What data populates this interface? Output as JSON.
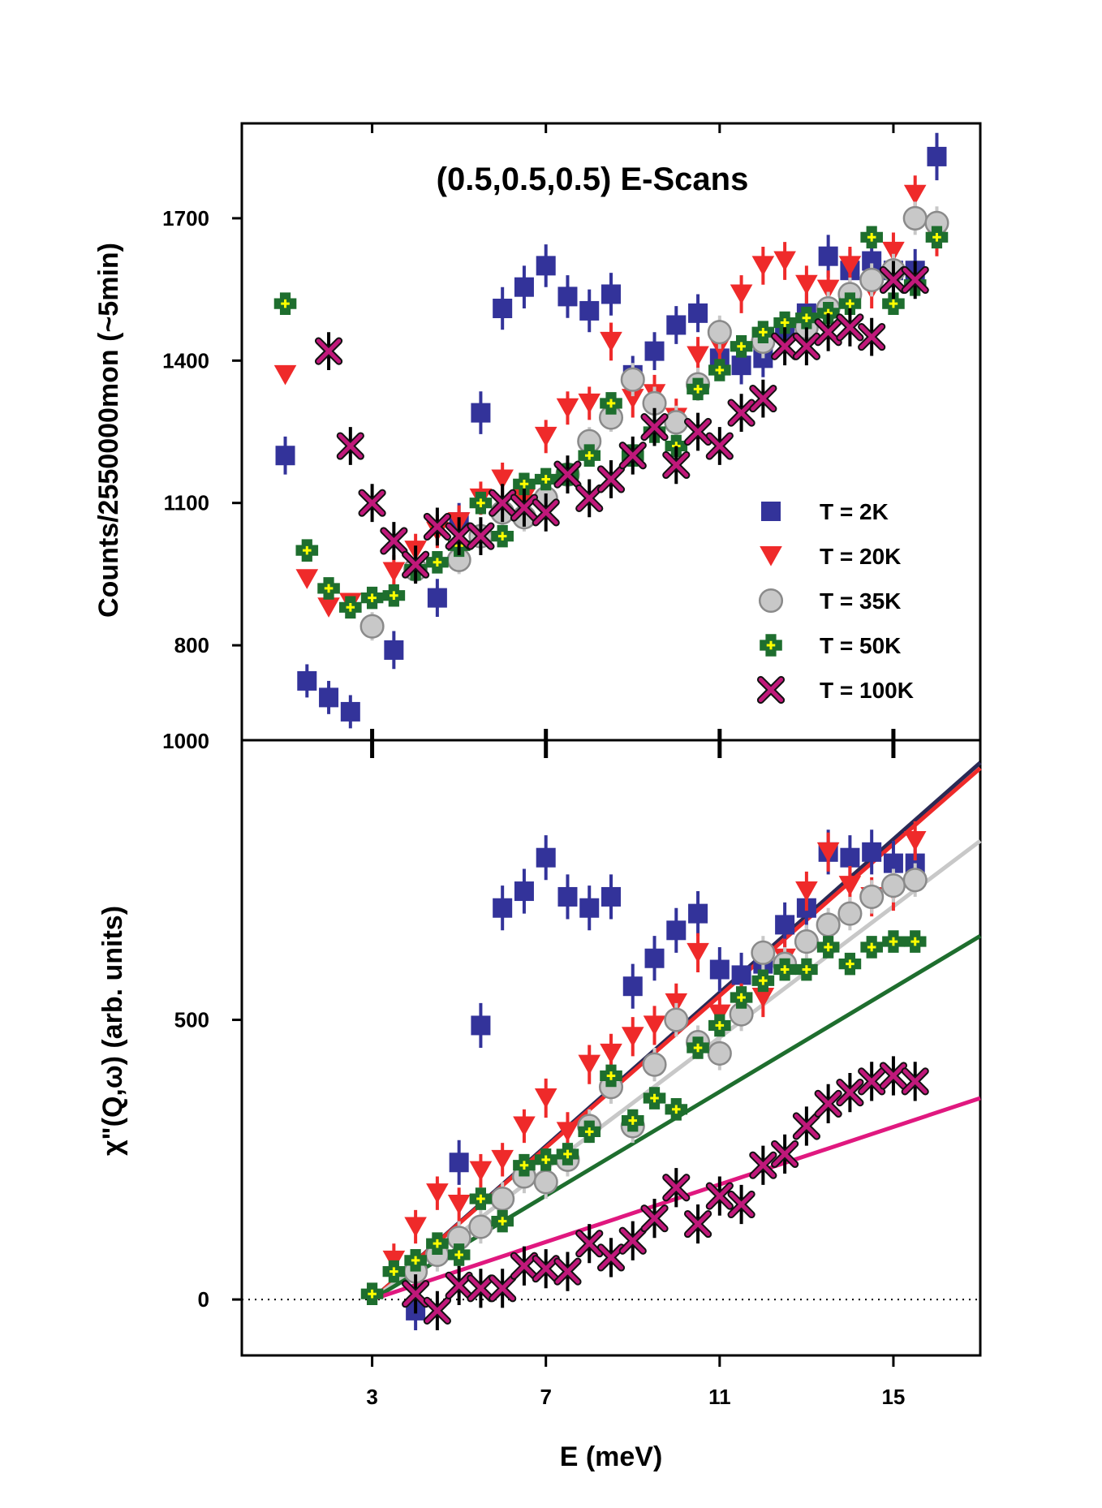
{
  "chart_data": [
    {
      "type": "scatter",
      "panel": "top",
      "title": "(0.5,0.5,0.5) E-Scans",
      "xlabel": "",
      "ylabel": "Counts/2550000mon (~5min)",
      "xlim": [
        0,
        17
      ],
      "ylim": [
        600,
        1900
      ],
      "yticks": [
        {
          "value": 800,
          "label": "800"
        },
        {
          "value": 1100,
          "label": "1100"
        },
        {
          "value": 1400,
          "label": "1400"
        },
        {
          "value": 1700,
          "label": "1700"
        }
      ],
      "bottom_tick_label": "1000",
      "legend_position": "bottom-right",
      "series": [
        {
          "name": "T = 2K",
          "color": "#33339a",
          "marker": "square",
          "x": [
            1.0,
            1.5,
            2.0,
            2.5,
            3.5,
            4.5,
            5.0,
            5.5,
            6.0,
            6.5,
            7.0,
            7.5,
            8.0,
            8.5,
            9.0,
            9.5,
            10.0,
            10.5,
            11.0,
            11.5,
            12.0,
            12.5,
            13.0,
            13.5,
            14.0,
            14.5,
            15.0,
            15.5,
            16.0
          ],
          "y": [
            1200,
            725,
            690,
            660,
            790,
            900,
            1060,
            1290,
            1510,
            1555,
            1600,
            1535,
            1505,
            1540,
            1370,
            1420,
            1475,
            1500,
            1405,
            1390,
            1405,
            1460,
            1500,
            1620,
            1590,
            1610,
            1590,
            1590,
            1830
          ],
          "err": [
            40,
            35,
            35,
            35,
            40,
            40,
            40,
            45,
            45,
            45,
            45,
            45,
            45,
            45,
            40,
            40,
            40,
            40,
            40,
            40,
            40,
            40,
            45,
            45,
            45,
            45,
            45,
            45,
            50
          ]
        },
        {
          "name": "T = 20K",
          "color": "#ef2a2a",
          "marker": "triangle-down",
          "x": [
            1.0,
            1.5,
            2.0,
            2.5,
            3.5,
            4.0,
            4.5,
            5.0,
            5.5,
            6.0,
            6.5,
            7.0,
            7.5,
            8.0,
            8.5,
            9.0,
            9.5,
            10.0,
            10.5,
            11.0,
            11.5,
            12.0,
            12.5,
            13.0,
            13.5,
            14.0,
            14.5,
            15.0,
            15.5,
            16.0
          ],
          "y": [
            1370,
            940,
            880,
            890,
            955,
            1000,
            1040,
            1060,
            1110,
            1150,
            1110,
            1240,
            1300,
            1310,
            1440,
            1320,
            1330,
            1280,
            1410,
            1430,
            1540,
            1600,
            1610,
            1560,
            1550,
            1600,
            1550,
            1630,
            1750,
            1660
          ],
          "err": [
            0,
            0,
            0,
            0,
            35,
            35,
            35,
            35,
            35,
            35,
            35,
            35,
            35,
            35,
            40,
            40,
            40,
            40,
            40,
            40,
            40,
            40,
            40,
            40,
            40,
            40,
            40,
            40,
            40,
            40
          ]
        },
        {
          "name": "T = 35K",
          "color": "#c8c8c8",
          "marker": "circle",
          "x": [
            3.0,
            4.0,
            5.0,
            5.5,
            6.0,
            6.5,
            7.0,
            7.5,
            8.0,
            8.5,
            9.0,
            9.5,
            10.0,
            10.5,
            11.0,
            12.0,
            13.0,
            13.5,
            14.0,
            14.5,
            15.0,
            15.5,
            16.0
          ],
          "y": [
            840,
            960,
            980,
            1030,
            1080,
            1070,
            1110,
            1160,
            1230,
            1280,
            1360,
            1310,
            1270,
            1350,
            1460,
            1440,
            1470,
            1510,
            1540,
            1570,
            1590,
            1700,
            1690
          ],
          "err": [
            30,
            30,
            30,
            30,
            30,
            30,
            30,
            30,
            30,
            30,
            35,
            35,
            35,
            35,
            35,
            35,
            35,
            35,
            35,
            35,
            35,
            35,
            35
          ]
        },
        {
          "name": "T = 50K",
          "color": "#1e6e2e",
          "marker": "cross",
          "x": [
            1.0,
            1.5,
            2.0,
            2.5,
            3.0,
            3.5,
            4.0,
            4.5,
            5.0,
            5.5,
            6.0,
            6.5,
            7.0,
            7.5,
            8.0,
            8.5,
            9.0,
            9.5,
            10.0,
            10.5,
            11.0,
            11.5,
            12.0,
            12.5,
            13.0,
            13.5,
            14.0,
            14.5,
            15.0,
            15.5,
            16.0
          ],
          "y": [
            1520,
            1000,
            920,
            880,
            900,
            905,
            960,
            975,
            1010,
            1100,
            1030,
            1140,
            1150,
            1160,
            1200,
            1310,
            1200,
            1250,
            1220,
            1340,
            1380,
            1430,
            1460,
            1480,
            1490,
            1500,
            1520,
            1660,
            1520,
            1560,
            1660
          ],
          "err": [
            0,
            0,
            0,
            0,
            0,
            0,
            0,
            0,
            0,
            0,
            0,
            0,
            0,
            0,
            0,
            0,
            0,
            0,
            0,
            0,
            0,
            0,
            0,
            0,
            0,
            0,
            0,
            0,
            0,
            0,
            0
          ]
        },
        {
          "name": "T = 100K",
          "color": "#c0187a",
          "marker": "x",
          "x": [
            2.0,
            2.5,
            3.0,
            3.5,
            4.0,
            4.5,
            5.0,
            5.5,
            6.0,
            6.5,
            7.0,
            7.5,
            8.0,
            8.5,
            9.0,
            9.5,
            10.0,
            10.5,
            11.0,
            11.5,
            12.0,
            12.5,
            13.0,
            13.5,
            14.0,
            14.5,
            15.0,
            15.5
          ],
          "y": [
            1420,
            1220,
            1100,
            1020,
            970,
            1050,
            1030,
            1030,
            1100,
            1090,
            1080,
            1160,
            1110,
            1150,
            1200,
            1260,
            1180,
            1250,
            1220,
            1290,
            1320,
            1430,
            1430,
            1460,
            1470,
            1450,
            1570,
            1570
          ],
          "err": [
            40,
            40,
            40,
            40,
            40,
            40,
            40,
            40,
            40,
            40,
            40,
            40,
            40,
            40,
            40,
            40,
            40,
            40,
            40,
            40,
            40,
            40,
            40,
            40,
            40,
            40,
            40,
            40
          ]
        }
      ]
    },
    {
      "type": "scatter",
      "panel": "bottom",
      "title": "",
      "xlabel": "E (meV)",
      "ylabel": "χ\"(Q,ω) (arb. units)",
      "xlim": [
        0,
        17
      ],
      "ylim": [
        -100,
        1000
      ],
      "xticks": [
        {
          "value": 3,
          "label": "3"
        },
        {
          "value": 7,
          "label": "7"
        },
        {
          "value": 11,
          "label": "11"
        },
        {
          "value": 15,
          "label": "15"
        }
      ],
      "yticks": [
        {
          "value": 0,
          "label": "0"
        },
        {
          "value": 500,
          "label": "500"
        }
      ],
      "series": [
        {
          "name": "T = 2K",
          "color": "#33339a",
          "marker": "square",
          "x": [
            4.0,
            5.0,
            5.5,
            6.0,
            6.5,
            7.0,
            7.5,
            8.0,
            8.5,
            9.0,
            9.5,
            10.0,
            10.5,
            11.0,
            11.5,
            12.0,
            12.5,
            13.0,
            13.5,
            14.0,
            14.5,
            15.0,
            15.5
          ],
          "y": [
            -20,
            245,
            490,
            700,
            730,
            790,
            720,
            700,
            720,
            560,
            610,
            660,
            690,
            590,
            580,
            600,
            670,
            700,
            800,
            790,
            800,
            780,
            780
          ],
          "err": [
            35,
            40,
            40,
            40,
            40,
            40,
            40,
            40,
            40,
            40,
            40,
            40,
            40,
            40,
            40,
            40,
            40,
            40,
            40,
            40,
            40,
            40,
            40
          ]
        },
        {
          "name": "T = 20K",
          "color": "#ef2a2a",
          "marker": "triangle-down",
          "x": [
            3.5,
            4.0,
            4.5,
            5.0,
            5.5,
            6.0,
            6.5,
            7.0,
            7.5,
            8.0,
            8.5,
            9.0,
            9.5,
            10.0,
            10.5,
            11.0,
            11.5,
            12.0,
            12.5,
            13.0,
            13.5,
            14.0,
            14.5,
            15.0,
            15.5
          ],
          "y": [
            70,
            130,
            190,
            170,
            230,
            250,
            310,
            360,
            300,
            420,
            440,
            470,
            490,
            530,
            620,
            510,
            530,
            540,
            610,
            730,
            800,
            740,
            720,
            730,
            820
          ],
          "err": [
            30,
            30,
            30,
            30,
            30,
            30,
            30,
            35,
            35,
            35,
            35,
            35,
            35,
            35,
            35,
            35,
            35,
            35,
            35,
            35,
            35,
            35,
            35,
            35,
            35
          ]
        },
        {
          "name": "T = 35K",
          "color": "#c8c8c8",
          "marker": "circle",
          "x": [
            4.0,
            4.5,
            5.0,
            5.5,
            6.0,
            6.5,
            7.0,
            7.5,
            8.0,
            8.5,
            9.0,
            9.5,
            10.0,
            10.5,
            11.0,
            11.5,
            12.0,
            12.5,
            13.0,
            13.5,
            14.0,
            14.5,
            15.0,
            15.5
          ],
          "y": [
            50,
            80,
            110,
            130,
            180,
            220,
            210,
            250,
            310,
            380,
            310,
            420,
            500,
            460,
            440,
            510,
            620,
            600,
            640,
            670,
            690,
            720,
            740,
            750
          ],
          "err": [
            30,
            30,
            30,
            30,
            30,
            30,
            30,
            30,
            30,
            30,
            30,
            30,
            30,
            30,
            30,
            30,
            30,
            30,
            30,
            30,
            30,
            30,
            30,
            30
          ]
        },
        {
          "name": "T = 50K",
          "color": "#1e6e2e",
          "marker": "cross",
          "x": [
            3.0,
            3.5,
            4.0,
            4.5,
            5.0,
            5.5,
            6.0,
            6.5,
            7.0,
            7.5,
            8.0,
            8.5,
            9.0,
            9.5,
            10.0,
            10.5,
            11.0,
            11.5,
            12.0,
            12.5,
            13.0,
            13.5,
            14.0,
            14.5,
            15.0,
            15.5
          ],
          "y": [
            10,
            50,
            70,
            100,
            80,
            180,
            140,
            240,
            250,
            260,
            300,
            400,
            320,
            360,
            340,
            450,
            490,
            540,
            570,
            590,
            590,
            630,
            600,
            630,
            640,
            640
          ],
          "err": [
            0,
            0,
            0,
            0,
            0,
            0,
            0,
            0,
            0,
            0,
            0,
            0,
            0,
            0,
            0,
            0,
            0,
            0,
            0,
            0,
            0,
            0,
            0,
            0,
            0,
            0
          ]
        },
        {
          "name": "T = 100K",
          "color": "#c0187a",
          "marker": "x",
          "x": [
            4.0,
            4.5,
            5.0,
            5.5,
            6.0,
            6.5,
            7.0,
            7.5,
            8.0,
            8.5,
            9.0,
            9.5,
            10.0,
            10.5,
            11.0,
            11.5,
            12.0,
            12.5,
            13.0,
            13.5,
            14.0,
            14.5,
            15.0,
            15.5
          ],
          "y": [
            10,
            -20,
            25,
            20,
            20,
            60,
            55,
            50,
            100,
            75,
            105,
            145,
            200,
            135,
            185,
            170,
            240,
            260,
            310,
            350,
            370,
            390,
            400,
            390
          ],
          "err": [
            35,
            35,
            35,
            35,
            35,
            35,
            35,
            35,
            35,
            35,
            35,
            35,
            35,
            35,
            35,
            35,
            35,
            35,
            35,
            35,
            35,
            35,
            35,
            35
          ]
        }
      ],
      "fit_lines": [
        {
          "name": "fit-2K",
          "color": "#2a2a55",
          "x": [
            3,
            17
          ],
          "y": [
            0,
            960
          ]
        },
        {
          "name": "fit-20K",
          "color": "#ef2a2a",
          "x": [
            3,
            17
          ],
          "y": [
            0,
            950
          ]
        },
        {
          "name": "fit-35K",
          "color": "#c8c8c8",
          "x": [
            3,
            17
          ],
          "y": [
            0,
            820
          ]
        },
        {
          "name": "fit-50K",
          "color": "#1e6e2e",
          "x": [
            3,
            17
          ],
          "y": [
            0,
            650
          ]
        },
        {
          "name": "fit-100K",
          "color": "#e0187f",
          "x": [
            3,
            17
          ],
          "y": [
            0,
            360
          ]
        }
      ],
      "zero_line": {
        "style": "dotted"
      }
    }
  ]
}
